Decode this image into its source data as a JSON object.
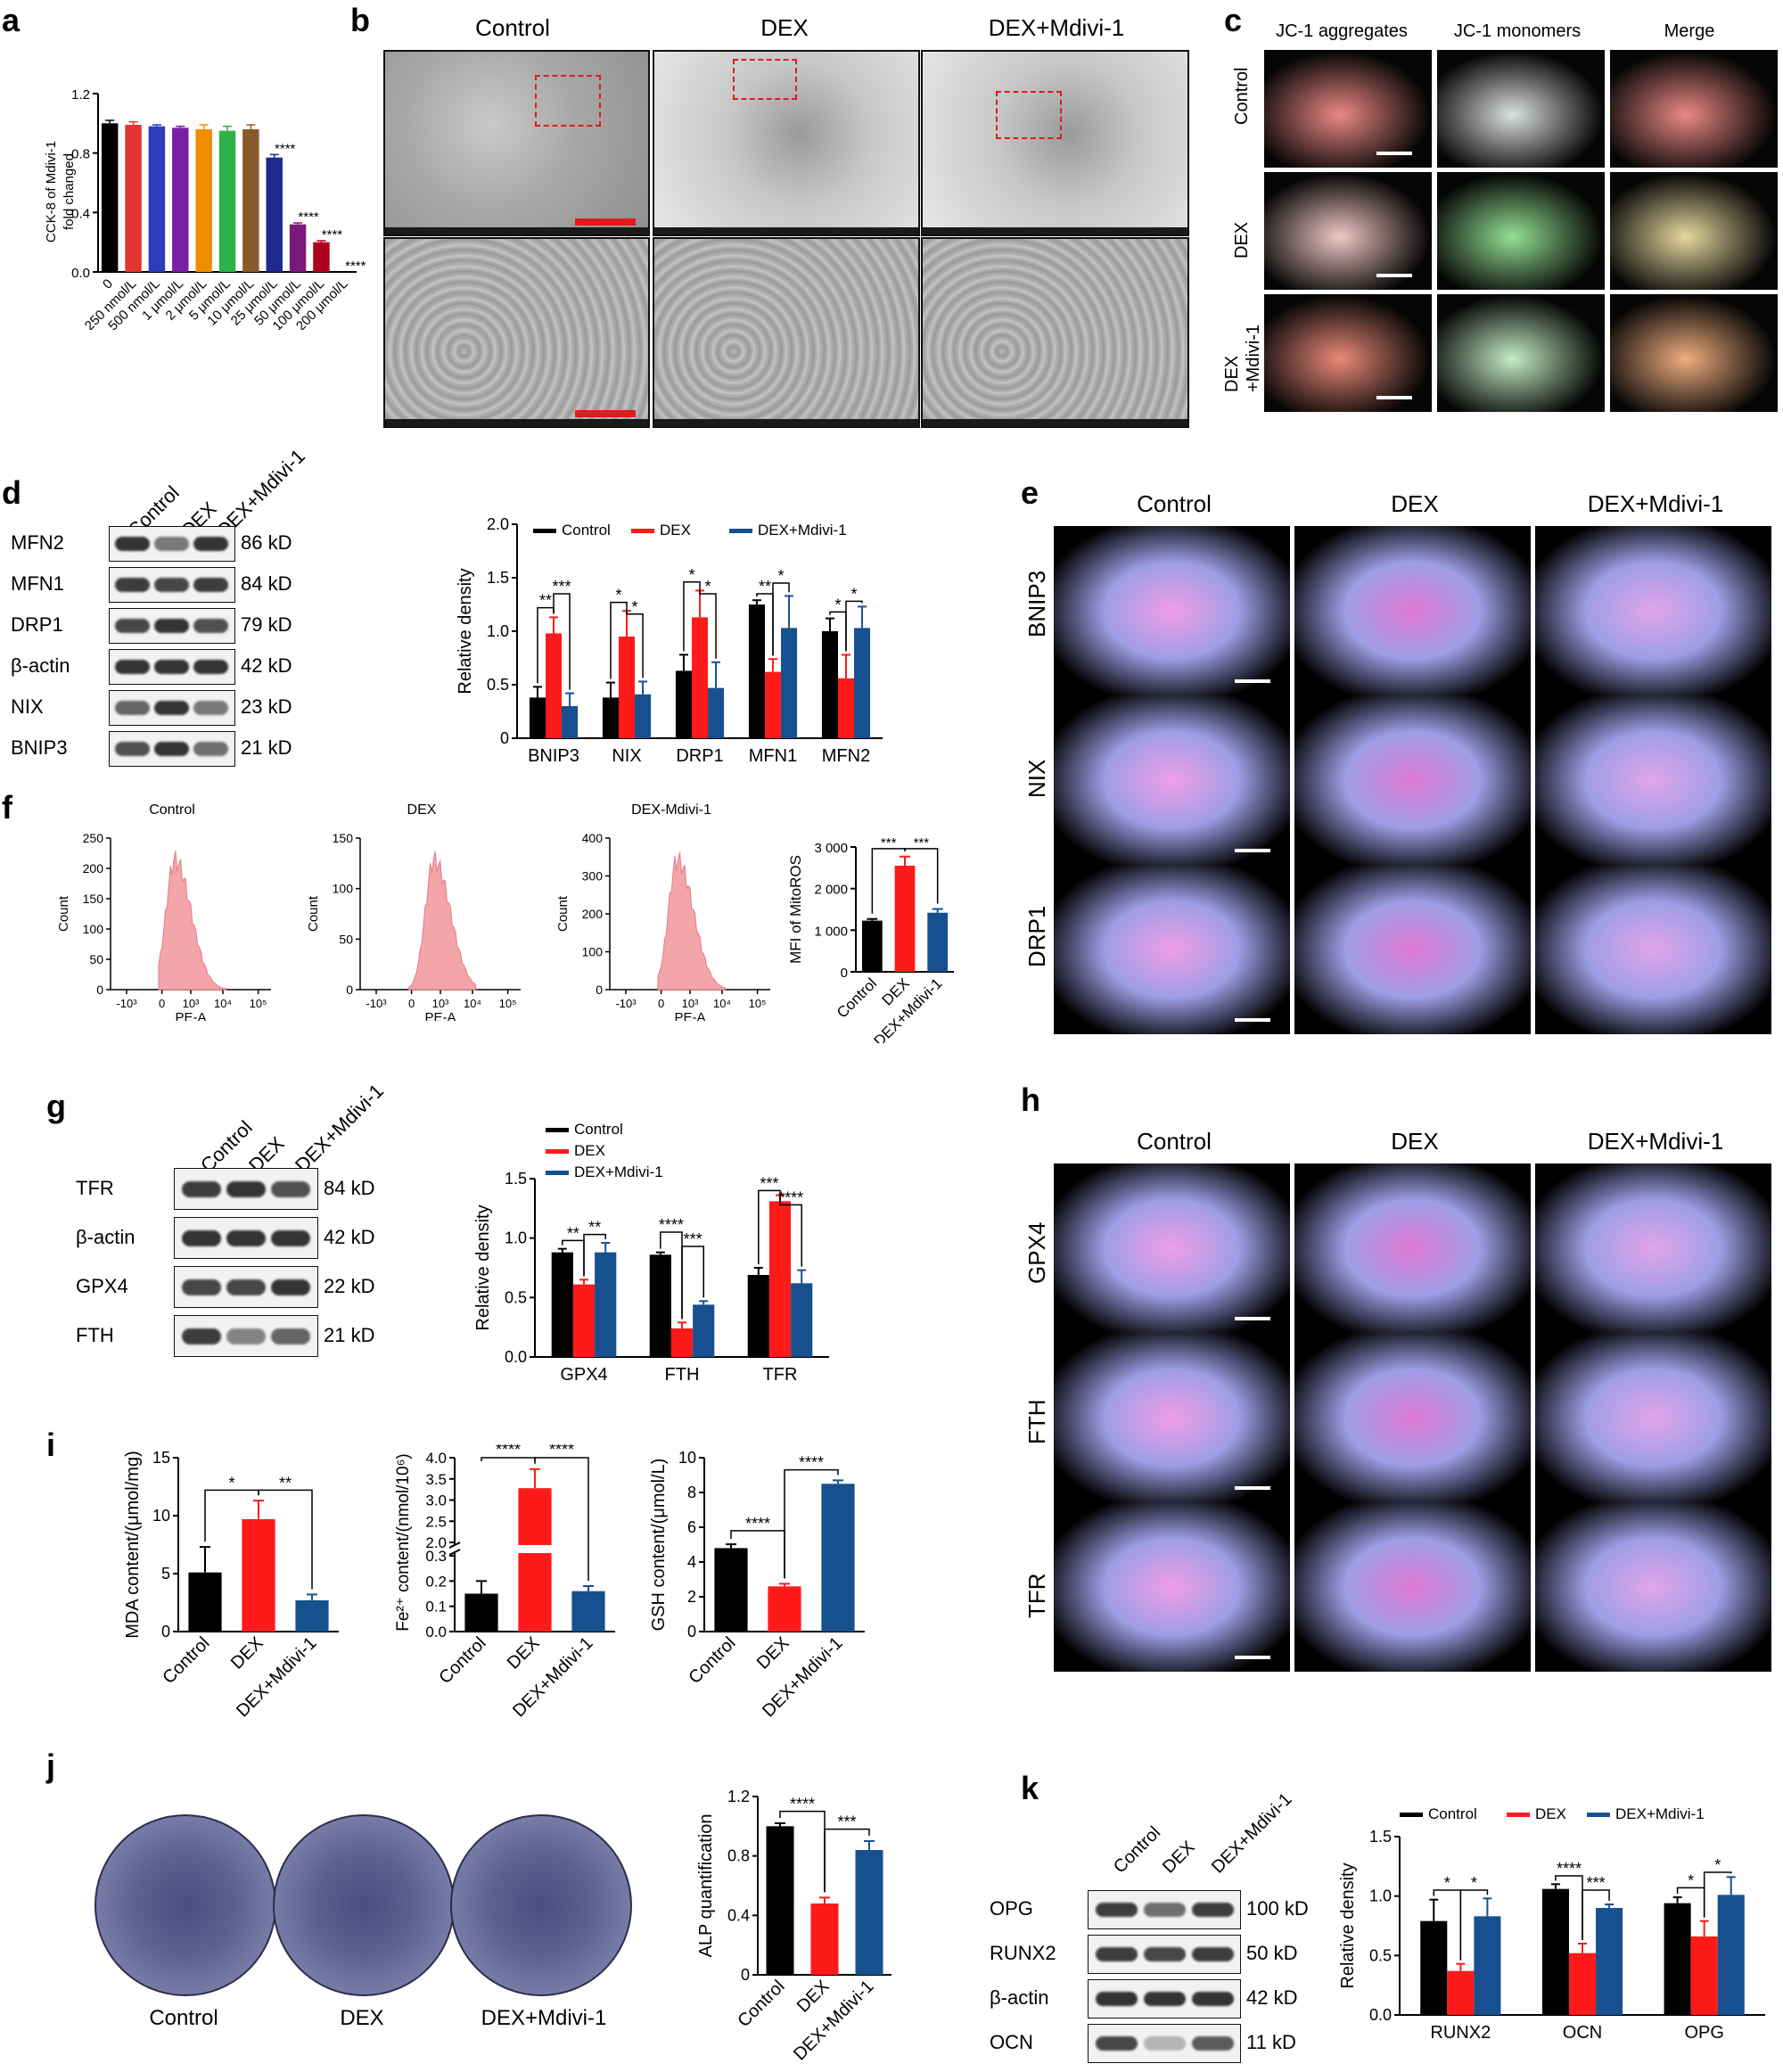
{
  "panels": {
    "a": {
      "letter": "a",
      "ylabel": [
        "CCK-8 of Mdivi-1",
        "fold changed"
      ],
      "yticks": [
        "0.0",
        "0.4",
        "0.8",
        "1.2"
      ],
      "categories": [
        "0",
        "250 nmol/L",
        "500 nmol/L",
        "1 μmol/L",
        "2 μmol/L",
        "5 μmol/L",
        "10 μmol/L",
        "25 μmol/L",
        "50 μmol/L",
        "100 μmol/L",
        "200 μmol/L"
      ]
    },
    "b": {
      "letter": "b",
      "columns": [
        "Control",
        "DEX",
        "DEX+Mdivi-1"
      ]
    },
    "c": {
      "letter": "c",
      "columns": [
        "JC-1 aggregates",
        "JC-1 monomers",
        "Merge"
      ],
      "rows": [
        "Control",
        "DEX",
        "DEX\n+Mdivi-1"
      ]
    },
    "d": {
      "letter": "d",
      "lanes": [
        "Control",
        "DEX",
        "DEX+Mdivi-1"
      ],
      "proteins": [
        "MFN2",
        "MFN1",
        "DRP1",
        "β-actin",
        "NIX",
        "BNIP3"
      ],
      "sizes": [
        "86 kD",
        "84 kD",
        "79 kD",
        "42 kD",
        "23 kD",
        "21 kD"
      ]
    },
    "e": {
      "letter": "e",
      "columns": [
        "Control",
        "DEX",
        "DEX+Mdivi-1"
      ],
      "rows": [
        "BNIP3",
        "NIX",
        "DRP1"
      ]
    },
    "f": {
      "letter": "f",
      "hist_titles": [
        "Control",
        "DEX",
        "DEX-Mdivi-1"
      ],
      "xlabel": "PE-A",
      "ylabel": "Count",
      "xticks": [
        "-10³",
        "0",
        "10³",
        "10⁴",
        "10⁵"
      ],
      "yticks": [
        [
          "0",
          "50",
          "100",
          "150",
          "200",
          "250"
        ],
        [
          "0",
          "50",
          "100",
          "150"
        ],
        [
          "0",
          "100",
          "200",
          "300",
          "400"
        ]
      ]
    },
    "g": {
      "letter": "g",
      "lanes": [
        "Control",
        "DEX",
        "DEX+Mdivi-1"
      ],
      "proteins": [
        "TFR",
        "β-actin",
        "GPX4",
        "FTH"
      ],
      "sizes": [
        "84 kD",
        "42 kD",
        "22 kD",
        "21 kD"
      ]
    },
    "h": {
      "letter": "h",
      "columns": [
        "Control",
        "DEX",
        "DEX+Mdivi-1"
      ],
      "rows": [
        "GPX4",
        "FTH",
        "TFR"
      ]
    },
    "i": {
      "letter": "i"
    },
    "j": {
      "letter": "j",
      "dish_labels": [
        "Control",
        "DEX",
        "DEX+Mdivi-1"
      ]
    },
    "k": {
      "letter": "k",
      "lanes": [
        "Control",
        "DEX",
        "DEX+Mdivi-1"
      ],
      "proteins": [
        "OPG",
        "RUNX2",
        "β-actin",
        "OCN"
      ],
      "sizes": [
        "100 kD",
        "50 kD",
        "42 kD",
        "11 kD"
      ]
    }
  },
  "colors": {
    "control": "#000000",
    "dex": "#ff1a1a",
    "mdivi": "#17508f",
    "hist": "#f3a5aa"
  },
  "chart_data": [
    {
      "id": "a",
      "type": "bar",
      "ylabel": "CCK-8 of Mdivi-1 fold changed",
      "ylim": [
        0,
        1.2
      ],
      "categories": [
        "0",
        "250 nmol/L",
        "500 nmol/L",
        "1 μmol/L",
        "2 μmol/L",
        "5 μmol/L",
        "10 μmol/L",
        "25 μmol/L",
        "50 μmol/L",
        "100 μmol/L",
        "200 μmol/L"
      ],
      "values": [
        1.0,
        0.99,
        0.98,
        0.97,
        0.96,
        0.95,
        0.96,
        0.77,
        0.32,
        0.2,
        0.0
      ],
      "errors": [
        0.02,
        0.02,
        0.01,
        0.01,
        0.03,
        0.03,
        0.03,
        0.02,
        0.01,
        0.01,
        0.0
      ],
      "colors": [
        "#000000",
        "#e3342f",
        "#2b3dbb",
        "#7b1fa2",
        "#f28c00",
        "#2eb14a",
        "#8b5a2b",
        "#1f2a90",
        "#7a1a7a",
        "#b00020",
        "#d4d400"
      ],
      "annotations": [
        {
          "category": "25 μmol/L",
          "text": "****"
        },
        {
          "category": "50 μmol/L",
          "text": "****"
        },
        {
          "category": "100 μmol/L",
          "text": "****"
        },
        {
          "category": "200 μmol/L",
          "text": "****"
        }
      ]
    },
    {
      "id": "d",
      "type": "bar",
      "ylabel": "Relative density",
      "ylim": [
        0,
        2.0
      ],
      "yticks": [
        "0",
        "0.5",
        "1.0",
        "1.5",
        "2.0"
      ],
      "categories": [
        "BNIP3",
        "NIX",
        "DRP1",
        "MFN1",
        "MFN2"
      ],
      "series": [
        {
          "name": "Control",
          "values": [
            0.38,
            0.38,
            0.63,
            1.25,
            1.0
          ],
          "errors": [
            0.1,
            0.14,
            0.15,
            0.04,
            0.12
          ]
        },
        {
          "name": "DEX",
          "values": [
            0.98,
            0.95,
            1.13,
            0.62,
            0.56
          ],
          "errors": [
            0.15,
            0.24,
            0.25,
            0.12,
            0.22
          ]
        },
        {
          "name": "DEX+Mdivi-1",
          "values": [
            0.3,
            0.41,
            0.47,
            1.03,
            1.03
          ],
          "errors": [
            0.12,
            0.12,
            0.24,
            0.3,
            0.2
          ]
        }
      ],
      "brackets": [
        {
          "cat": 0,
          "from": 0,
          "to": 1,
          "text": "**",
          "y": 1.22
        },
        {
          "cat": 0,
          "from": 1,
          "to": 2,
          "text": "***",
          "y": 1.35
        },
        {
          "cat": 1,
          "from": 0,
          "to": 1,
          "text": "*",
          "y": 1.27
        },
        {
          "cat": 1,
          "from": 1,
          "to": 2,
          "text": "*",
          "y": 1.16
        },
        {
          "cat": 2,
          "from": 0,
          "to": 1,
          "text": "*",
          "y": 1.46
        },
        {
          "cat": 2,
          "from": 1,
          "to": 2,
          "text": "*",
          "y": 1.35
        },
        {
          "cat": 3,
          "from": 0,
          "to": 1,
          "text": "**",
          "y": 1.35
        },
        {
          "cat": 3,
          "from": 1,
          "to": 2,
          "text": "*",
          "y": 1.45
        },
        {
          "cat": 4,
          "from": 0,
          "to": 1,
          "text": "*",
          "y": 1.18
        },
        {
          "cat": 4,
          "from": 1,
          "to": 2,
          "text": "*",
          "y": 1.28
        }
      ]
    },
    {
      "id": "f",
      "type": "bar",
      "ylabel": "MFI of MitoROS",
      "ylim": [
        0,
        3000
      ],
      "yticks": [
        "0",
        "1 000",
        "2 000",
        "3 000"
      ],
      "categories": [
        "Control",
        "DEX",
        "DEX+Mdivi-1"
      ],
      "values": [
        1230,
        2550,
        1420
      ],
      "errors": [
        40,
        220,
        90
      ],
      "brackets": [
        {
          "from": 0,
          "to": 1,
          "text": "***",
          "y": 2960
        },
        {
          "from": 1,
          "to": 2,
          "text": "***",
          "y": 2960
        }
      ]
    },
    {
      "id": "g",
      "type": "bar",
      "ylabel": "Relative density",
      "ylim": [
        0,
        1.5
      ],
      "yticks": [
        "0.0",
        "0.5",
        "1.0",
        "1.5"
      ],
      "categories": [
        "GPX4",
        "FTH",
        "TFR"
      ],
      "series": [
        {
          "name": "Control",
          "values": [
            0.88,
            0.86,
            0.69
          ],
          "errors": [
            0.03,
            0.02,
            0.06
          ]
        },
        {
          "name": "DEX",
          "values": [
            0.61,
            0.24,
            1.31
          ],
          "errors": [
            0.04,
            0.05,
            0.05
          ]
        },
        {
          "name": "DEX+Mdivi-1",
          "values": [
            0.88,
            0.44,
            0.62
          ],
          "errors": [
            0.08,
            0.03,
            0.11
          ]
        }
      ],
      "brackets": [
        {
          "cat": 0,
          "from": 0,
          "to": 1,
          "text": "**",
          "y": 0.98
        },
        {
          "cat": 0,
          "from": 1,
          "to": 2,
          "text": "**",
          "y": 1.03
        },
        {
          "cat": 1,
          "from": 0,
          "to": 1,
          "text": "****",
          "y": 1.05
        },
        {
          "cat": 1,
          "from": 1,
          "to": 2,
          "text": "***",
          "y": 0.93
        },
        {
          "cat": 2,
          "from": 0,
          "to": 1,
          "text": "***",
          "y": 1.4
        },
        {
          "cat": 2,
          "from": 1,
          "to": 2,
          "text": "****",
          "y": 1.28
        }
      ]
    },
    {
      "id": "i1",
      "type": "bar",
      "ylabel": "MDA content/(μmol/mg)",
      "ylim": [
        0,
        15
      ],
      "yticks": [
        "0",
        "5",
        "10",
        "15"
      ],
      "categories": [
        "Control",
        "DEX",
        "DEX+Mdivi-1"
      ],
      "values": [
        5.1,
        9.7,
        2.7
      ],
      "errors": [
        2.2,
        1.6,
        0.5
      ],
      "brackets": [
        {
          "from": 0,
          "to": 1,
          "text": "*",
          "y": 12.2
        },
        {
          "from": 1,
          "to": 2,
          "text": "**",
          "y": 12.2
        }
      ]
    },
    {
      "id": "i2",
      "type": "bar",
      "ylabel": "Fe²⁺ content/(nmol/10⁶)",
      "broken_axis": true,
      "yticks": [
        "0.0",
        "0.1",
        "0.2",
        "0.3",
        "2.0",
        "2.5",
        "3.0",
        "3.5",
        "4.0"
      ],
      "categories": [
        "Control",
        "DEX",
        "DEX+Mdivi-1"
      ],
      "values": [
        0.15,
        3.28,
        0.16
      ],
      "errors": [
        0.05,
        0.45,
        0.02
      ],
      "brackets": [
        {
          "from": 0,
          "to": 1,
          "text": "****",
          "y": 4.0
        },
        {
          "from": 1,
          "to": 2,
          "text": "****",
          "y": 4.0
        }
      ]
    },
    {
      "id": "i3",
      "type": "bar",
      "ylabel": "GSH content/(μmol/L)",
      "ylim": [
        0,
        10
      ],
      "yticks": [
        "0",
        "2",
        "4",
        "6",
        "8",
        "10"
      ],
      "categories": [
        "Control",
        "DEX",
        "DEX+Mdivi-1"
      ],
      "values": [
        4.8,
        2.6,
        8.5
      ],
      "errors": [
        0.22,
        0.15,
        0.2
      ],
      "brackets": [
        {
          "from": 0,
          "to": 1,
          "text": "****",
          "y": 5.8
        },
        {
          "from": 1,
          "to": 2,
          "text": "****",
          "y": 9.3
        }
      ]
    },
    {
      "id": "j",
      "type": "bar",
      "ylabel": "ALP quantification",
      "ylim": [
        0,
        1.2
      ],
      "yticks": [
        "0",
        "0.4",
        "0.8",
        "1.2"
      ],
      "categories": [
        "Control",
        "DEX",
        "DEX+Mdivi-1"
      ],
      "values": [
        1.0,
        0.48,
        0.84
      ],
      "errors": [
        0.02,
        0.04,
        0.06
      ],
      "brackets": [
        {
          "from": 0,
          "to": 1,
          "text": "****",
          "y": 1.1
        },
        {
          "from": 1,
          "to": 2,
          "text": "***",
          "y": 0.98
        }
      ]
    },
    {
      "id": "k",
      "type": "bar",
      "ylabel": "Relative density",
      "ylim": [
        0,
        1.5
      ],
      "yticks": [
        "0.0",
        "0.5",
        "1.0",
        "1.5"
      ],
      "categories": [
        "RUNX2",
        "OCN",
        "OPG"
      ],
      "series": [
        {
          "name": "Control",
          "values": [
            0.79,
            1.06,
            0.94
          ],
          "errors": [
            0.18,
            0.04,
            0.05
          ]
        },
        {
          "name": "DEX",
          "values": [
            0.37,
            0.52,
            0.66
          ],
          "errors": [
            0.06,
            0.08,
            0.13
          ]
        },
        {
          "name": "DEX+Mdivi-1",
          "values": [
            0.83,
            0.9,
            1.01
          ],
          "errors": [
            0.15,
            0.03,
            0.15
          ]
        }
      ],
      "brackets": [
        {
          "cat": 0,
          "from": 0,
          "to": 1,
          "text": "*",
          "y": 1.05
        },
        {
          "cat": 0,
          "from": 1,
          "to": 2,
          "text": "*",
          "y": 1.05
        },
        {
          "cat": 1,
          "from": 0,
          "to": 1,
          "text": "****",
          "y": 1.17
        },
        {
          "cat": 1,
          "from": 1,
          "to": 2,
          "text": "***",
          "y": 1.05
        },
        {
          "cat": 2,
          "from": 0,
          "to": 1,
          "text": "*",
          "y": 1.07
        },
        {
          "cat": 2,
          "from": 1,
          "to": 2,
          "text": "*",
          "y": 1.2
        }
      ]
    }
  ]
}
